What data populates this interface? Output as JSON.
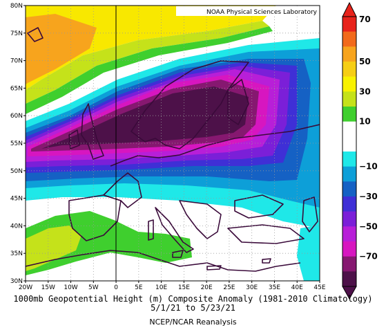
{
  "credit": "NOAA Physical Sciences Laboratory",
  "caption": {
    "line1": "1000mb Geopotential Height (m) Composite Anomaly (1981-2010 Climatology)",
    "line2": "5/1/21 to 5/23/21",
    "line3": "NCEP/NCAR Reanalysis"
  },
  "map": {
    "lon_ticks": [
      "20W",
      "15W",
      "10W",
      "5W",
      "0",
      "5E",
      "10E",
      "15E",
      "20E",
      "25E",
      "30E",
      "35E",
      "40E",
      "45E"
    ],
    "lat_ticks": [
      "30N",
      "35N",
      "40N",
      "45N",
      "50N",
      "55N",
      "60N",
      "65N",
      "70N",
      "75N",
      "80N"
    ],
    "lon_range": [
      -20,
      45
    ],
    "lat_range": [
      30,
      80
    ],
    "grid": "dotted"
  },
  "colorbar": {
    "labels": [
      "70",
      "50",
      "30",
      "10",
      "−10",
      "−30",
      "−50",
      "−70"
    ],
    "colors": [
      "#e8231b",
      "#f26a1b",
      "#f7a41d",
      "#f6ce14",
      "#f8f200",
      "#c5e21a",
      "#3fcf2e",
      "#ffffff",
      "#ffffff",
      "#1fe8e8",
      "#0d9fd8",
      "#1561c4",
      "#3f2fd6",
      "#7b1fd8",
      "#b81fd8",
      "#d716c0",
      "#861870",
      "#4d1149"
    ],
    "orientation": "vertical",
    "placement": "right"
  },
  "colors": {
    "land_outline": "#3a0a3a",
    "frame": "#000000"
  }
}
